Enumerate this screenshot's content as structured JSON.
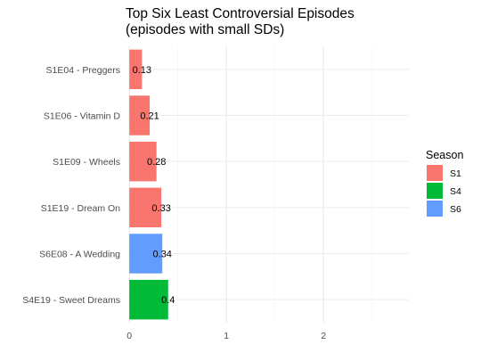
{
  "chart_data": {
    "type": "bar",
    "orientation": "horizontal",
    "title": "Top Six Least Controversial Episodes",
    "subtitle": "(episodes with small SDs)",
    "xlabel": "",
    "ylabel": "",
    "categories": [
      "S1E04 - Preggers",
      "S1E06 - Vitamin D",
      "S1E09 - Wheels",
      "S1E19 - Dream On",
      "S6E08 - A Wedding",
      "S4E19 - Sweet Dreams"
    ],
    "values": [
      0.13,
      0.21,
      0.28,
      0.33,
      0.34,
      0.4
    ],
    "value_labels": [
      "0.13",
      "0.21",
      "0.28",
      "0.33",
      "0.34",
      "0.4"
    ],
    "season": [
      "S1",
      "S1",
      "S1",
      "S1",
      "S6",
      "S4"
    ],
    "xlim": [
      -0.02,
      2.88
    ],
    "xticks": [
      0,
      1,
      2
    ],
    "xtick_labels": [
      "0",
      "1",
      "2"
    ],
    "grid": true,
    "legend": {
      "title": "Season",
      "placement": "right",
      "items": [
        {
          "name": "S1",
          "color": "#F8766D"
        },
        {
          "name": "S4",
          "color": "#00BA38"
        },
        {
          "name": "S6",
          "color": "#619CFF"
        }
      ]
    }
  }
}
